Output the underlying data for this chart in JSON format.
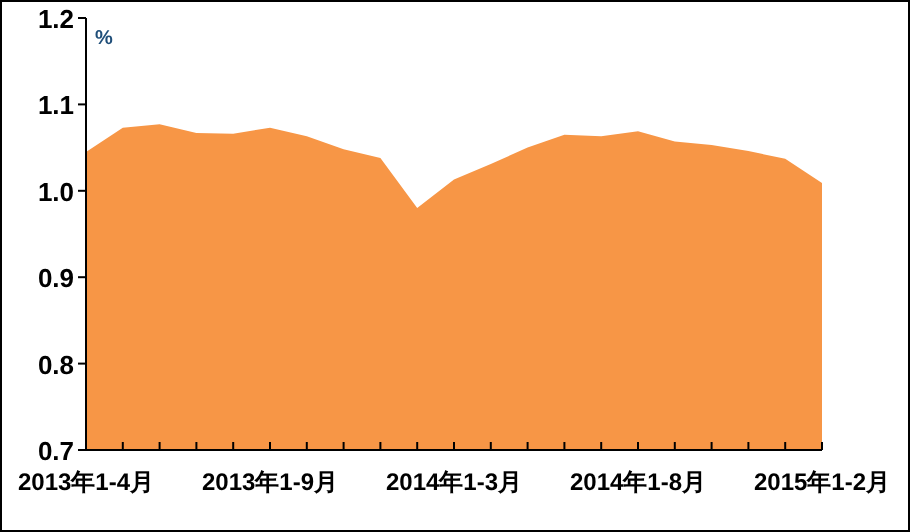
{
  "chart_data": {
    "type": "area",
    "ylabel": "%",
    "categories": [
      "2013年1-4月",
      null,
      null,
      null,
      null,
      "2013年1-9月",
      null,
      null,
      null,
      null,
      "2014年1-3月",
      null,
      null,
      null,
      null,
      "2014年1-8月",
      null,
      null,
      null,
      null,
      "2015年1-2月"
    ],
    "series": [
      {
        "color": "#f79646",
        "values": [
          1.045,
          1.073,
          1.077,
          1.067,
          1.066,
          1.073,
          1.063,
          1.048,
          1.038,
          0.98,
          1.013,
          1.031,
          1.05,
          1.065,
          1.063,
          1.069,
          1.057,
          1.053,
          1.046,
          1.037,
          1.009
        ]
      }
    ],
    "ylim": [
      0.7,
      1.2
    ],
    "yticks": [
      0.7,
      0.8,
      0.9,
      {
        "value": 1.0,
        "label": "1.0"
      },
      1.1,
      1.2
    ],
    "grid": false
  }
}
